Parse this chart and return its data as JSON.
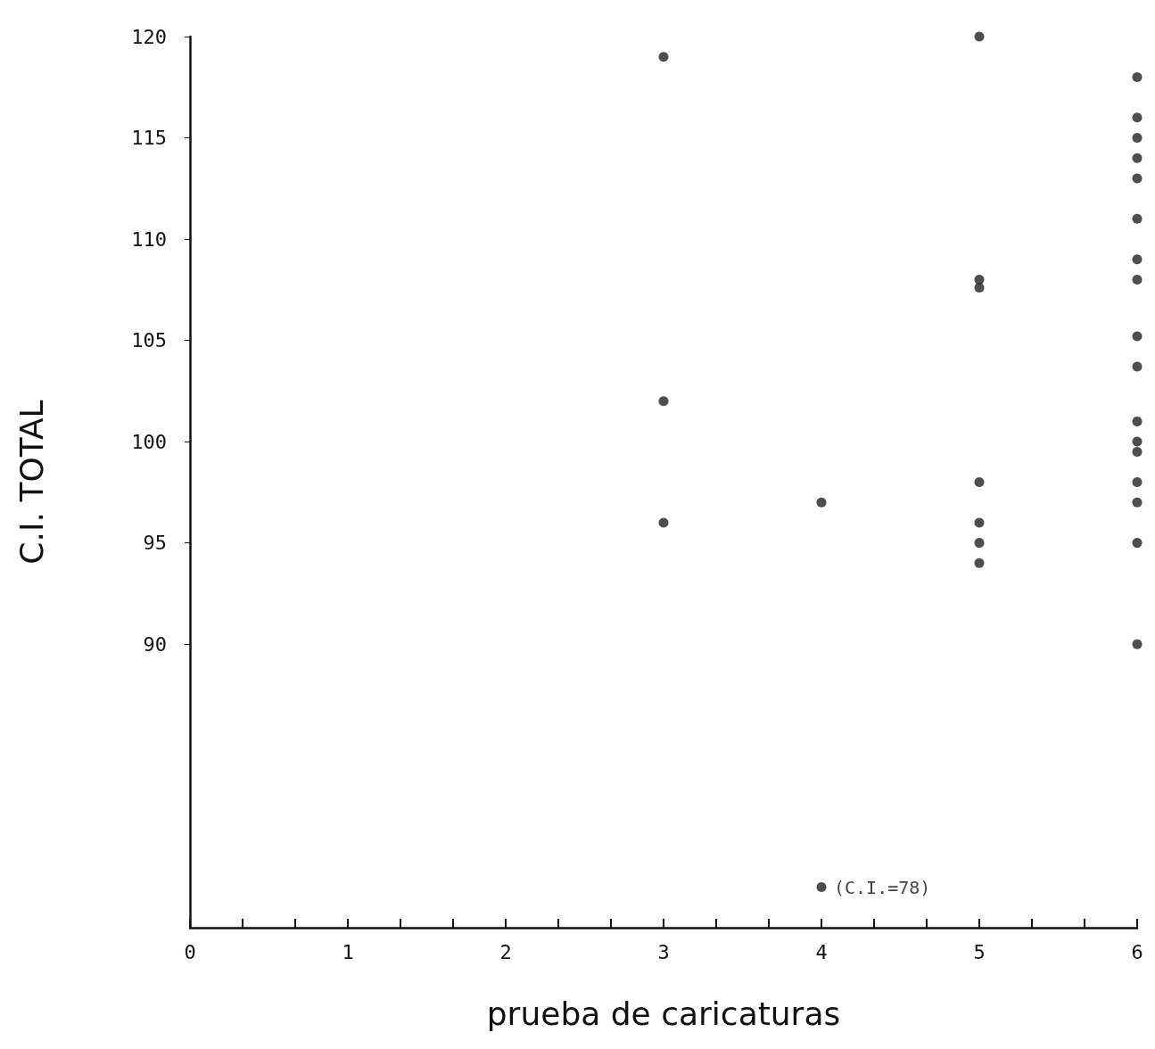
{
  "chart_data": {
    "type": "scatter",
    "xlabel": "prueba de caricaturas",
    "ylabel": "C.I. TOTAL",
    "x": [
      3,
      3,
      3,
      4,
      4,
      5,
      5,
      5,
      5,
      5,
      5,
      5,
      6,
      6,
      6,
      6,
      6,
      6,
      6,
      6,
      6,
      6,
      6,
      6,
      6,
      6,
      6,
      6,
      6
    ],
    "values": [
      119,
      102,
      96,
      97,
      78,
      120,
      108,
      107.6,
      98,
      96,
      95,
      94,
      118,
      116,
      115,
      114,
      113,
      111,
      109,
      108,
      105.2,
      103.7,
      101,
      100,
      99.5,
      98,
      97,
      95,
      90
    ],
    "color": "#222222",
    "marker": "circle",
    "grid": false,
    "xlim": [
      0,
      6
    ],
    "ylim": [
      76,
      120
    ],
    "xticks": [
      0,
      {
        "value": 0.333,
        "label": null
      },
      {
        "value": 0.667,
        "label": null
      },
      1,
      {
        "value": 1.333,
        "label": null
      },
      {
        "value": 1.667,
        "label": null
      },
      2,
      {
        "value": 2.333,
        "label": null
      },
      {
        "value": 2.667,
        "label": null
      },
      3,
      {
        "value": 3.333,
        "label": null
      },
      {
        "value": 3.667,
        "label": null
      },
      4,
      {
        "value": 4.333,
        "label": null
      },
      {
        "value": 4.667,
        "label": null
      },
      5,
      {
        "value": 5.333,
        "label": null
      },
      {
        "value": 5.667,
        "label": null
      },
      6
    ],
    "yticks": [
      90,
      95,
      100,
      105,
      110,
      115,
      120
    ],
    "annotations": [
      {
        "text": "(C.I.=78)",
        "x": 4,
        "y": 78
      }
    ]
  }
}
